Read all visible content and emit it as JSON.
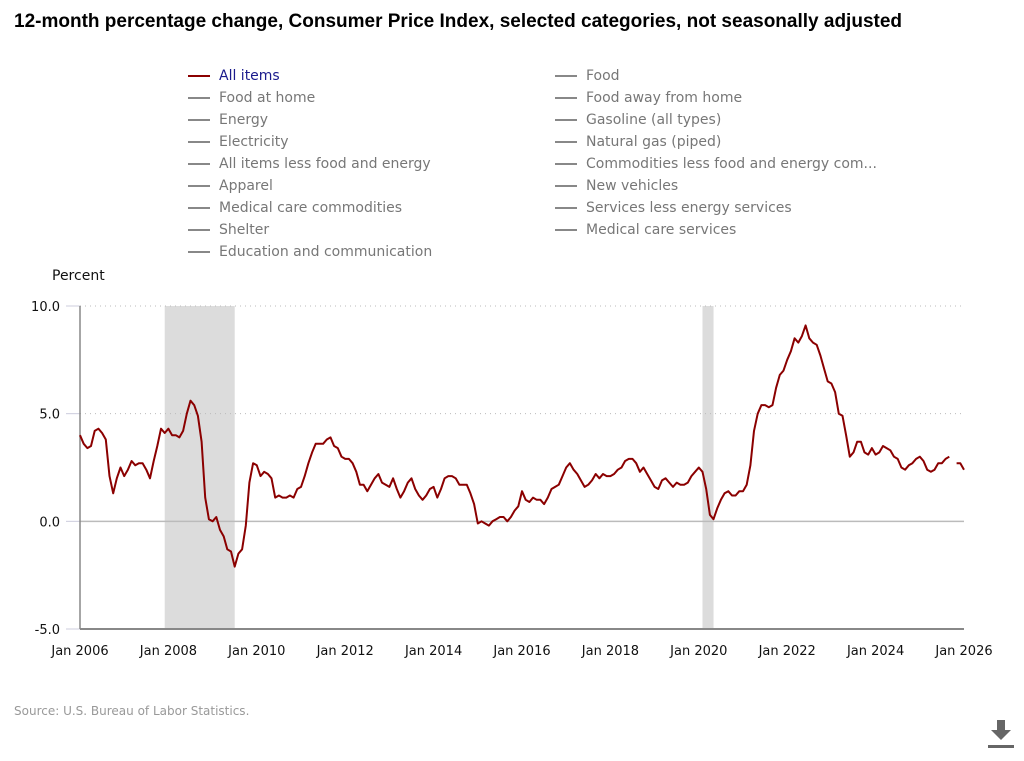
{
  "title": "12-month percentage change, Consumer Price Index, selected categories, not seasonally adjusted",
  "legend": [
    {
      "label": "All items",
      "active": true
    },
    {
      "label": "Food",
      "active": false
    },
    {
      "label": "Food at home",
      "active": false
    },
    {
      "label": "Food away from home",
      "active": false
    },
    {
      "label": "Energy",
      "active": false
    },
    {
      "label": "Gasoline (all types)",
      "active": false
    },
    {
      "label": "Electricity",
      "active": false
    },
    {
      "label": "Natural gas (piped)",
      "active": false
    },
    {
      "label": "All items less food and energy",
      "active": false
    },
    {
      "label": "Commodities less food and energy com...",
      "active": false
    },
    {
      "label": "Apparel",
      "active": false
    },
    {
      "label": "New vehicles",
      "active": false
    },
    {
      "label": "Medical care commodities",
      "active": false
    },
    {
      "label": "Services less energy services",
      "active": false
    },
    {
      "label": "Shelter",
      "active": false
    },
    {
      "label": "Medical care services",
      "active": false
    },
    {
      "label": "Education and communication",
      "active": false
    }
  ],
  "source": "Source: U.S. Bureau of Labor Statistics.",
  "download_icon": "download-icon",
  "chart_data": {
    "type": "line",
    "ylabel": "Percent",
    "ylim": [
      -5,
      10
    ],
    "yticks": [
      "10.0",
      "5.0",
      "0.0",
      "-5.0"
    ],
    "xlim": [
      "2006-01",
      "2026-01"
    ],
    "xticks": [
      "Jan 2006",
      "Jan 2008",
      "Jan 2010",
      "Jan 2012",
      "Jan 2014",
      "Jan 2016",
      "Jan 2018",
      "Jan 2020",
      "Jan 2022",
      "Jan 2024",
      "Jan 2026"
    ],
    "grid": "horizontal dotted",
    "recessions": [
      [
        "2007-12",
        "2009-06"
      ],
      [
        "2020-02",
        "2020-04"
      ]
    ],
    "series": [
      {
        "name": "All items",
        "color": "#8b0000",
        "monthly_values_by_year": {
          "2006": [
            4.0,
            3.6,
            3.4,
            3.5,
            4.2,
            4.3,
            4.1,
            3.8,
            2.1,
            1.3,
            2.0,
            2.5
          ],
          "2007": [
            2.1,
            2.4,
            2.8,
            2.6,
            2.7,
            2.7,
            2.4,
            2.0,
            2.8,
            3.5,
            4.3,
            4.1
          ],
          "2008": [
            4.3,
            4.0,
            4.0,
            3.9,
            4.2,
            5.0,
            5.6,
            5.4,
            4.9,
            3.7,
            1.1,
            0.1
          ],
          "2009": [
            0.0,
            0.2,
            -0.4,
            -0.7,
            -1.3,
            -1.4,
            -2.1,
            -1.5,
            -1.3,
            -0.2,
            1.8,
            2.7
          ],
          "2010": [
            2.6,
            2.1,
            2.3,
            2.2,
            2.0,
            1.1,
            1.2,
            1.1,
            1.1,
            1.2,
            1.1,
            1.5
          ],
          "2011": [
            1.6,
            2.1,
            2.7,
            3.2,
            3.6,
            3.6,
            3.6,
            3.8,
            3.9,
            3.5,
            3.4,
            3.0
          ],
          "2012": [
            2.9,
            2.9,
            2.7,
            2.3,
            1.7,
            1.7,
            1.4,
            1.7,
            2.0,
            2.2,
            1.8,
            1.7
          ],
          "2013": [
            1.6,
            2.0,
            1.5,
            1.1,
            1.4,
            1.8,
            2.0,
            1.5,
            1.2,
            1.0,
            1.2,
            1.5
          ],
          "2014": [
            1.6,
            1.1,
            1.5,
            2.0,
            2.1,
            2.1,
            2.0,
            1.7,
            1.7,
            1.7,
            1.3,
            0.8
          ],
          "2015": [
            -0.1,
            0.0,
            -0.1,
            -0.2,
            0.0,
            0.1,
            0.2,
            0.2,
            0.0,
            0.2,
            0.5,
            0.7
          ],
          "2016": [
            1.4,
            1.0,
            0.9,
            1.1,
            1.0,
            1.0,
            0.8,
            1.1,
            1.5,
            1.6,
            1.7,
            2.1
          ],
          "2017": [
            2.5,
            2.7,
            2.4,
            2.2,
            1.9,
            1.6,
            1.7,
            1.9,
            2.2,
            2.0,
            2.2,
            2.1
          ],
          "2018": [
            2.1,
            2.2,
            2.4,
            2.5,
            2.8,
            2.9,
            2.9,
            2.7,
            2.3,
            2.5,
            2.2,
            1.9
          ],
          "2019": [
            1.6,
            1.5,
            1.9,
            2.0,
            1.8,
            1.6,
            1.8,
            1.7,
            1.7,
            1.8,
            2.1,
            2.3
          ],
          "2020": [
            2.5,
            2.3,
            1.5,
            0.3,
            0.1,
            0.6,
            1.0,
            1.3,
            1.4,
            1.2,
            1.2,
            1.4
          ],
          "2021": [
            1.4,
            1.7,
            2.6,
            4.2,
            5.0,
            5.4,
            5.4,
            5.3,
            5.4,
            6.2,
            6.8,
            7.0
          ],
          "2022": [
            7.5,
            7.9,
            8.5,
            8.3,
            8.6,
            9.1,
            8.5,
            8.3,
            8.2,
            7.7,
            7.1,
            6.5
          ],
          "2023": [
            6.4,
            6.0,
            5.0,
            4.9,
            4.0,
            3.0,
            3.2,
            3.7,
            3.7,
            3.2,
            3.1,
            3.4
          ],
          "2024": [
            3.1,
            3.2,
            3.5,
            3.4,
            3.3,
            3.0,
            2.9,
            2.5,
            2.4,
            2.6,
            2.7,
            2.9
          ],
          "2025": [
            3.0,
            2.8,
            2.4,
            2.3,
            2.4,
            2.7,
            2.7,
            2.9,
            3.0,
            null,
            2.7,
            2.7
          ],
          "2026": [
            2.4
          ]
        }
      }
    ]
  }
}
